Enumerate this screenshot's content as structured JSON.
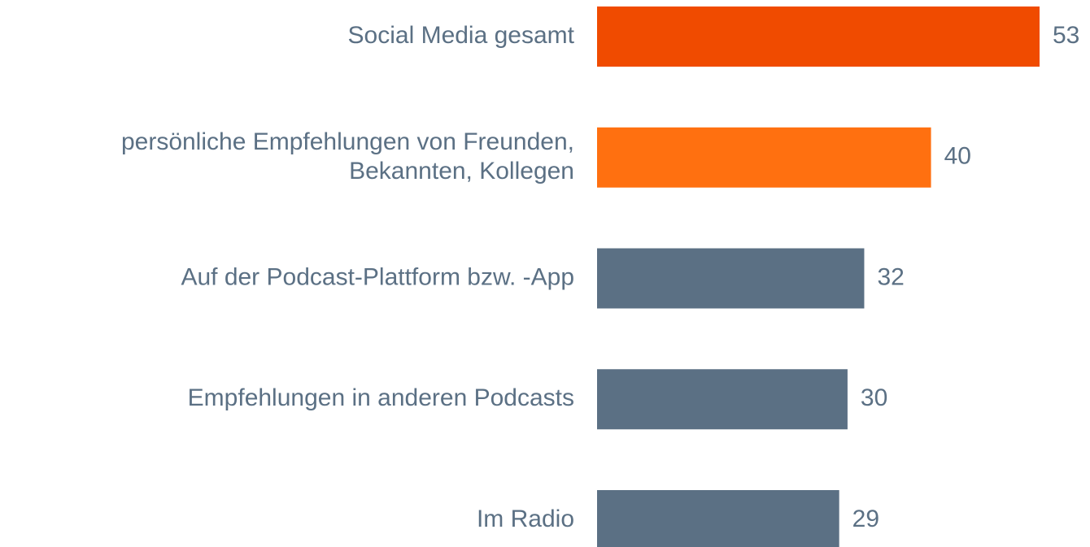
{
  "chart_data": {
    "type": "barh",
    "categories": [
      "Social Media gesamt",
      "persönliche Empfehlungen von Freunden,\nBekannten, Kollegen",
      "Auf der Podcast-Plattform bzw. -App",
      "Empfehlungen in anderen Podcasts",
      "Im Radio"
    ],
    "values": [
      53,
      40,
      32,
      30,
      29
    ],
    "colors": [
      "#f04b00",
      "#ff7010",
      "#5b7084",
      "#5b7084",
      "#5b7084"
    ]
  }
}
